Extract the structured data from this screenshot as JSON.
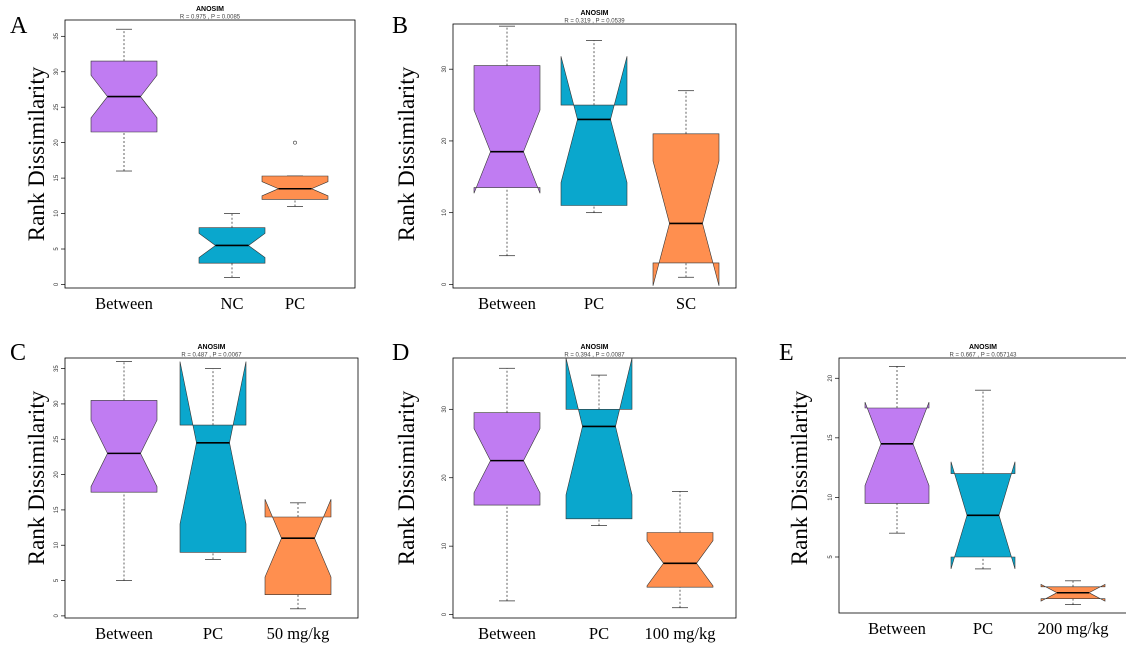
{
  "colors": {
    "Between": "#c07cf2",
    "PC": "#0aa7cd",
    "other": "#ff8f4f"
  },
  "chart_data": [
    {
      "panel": "A",
      "type": "box",
      "title": "ANOSIM",
      "subtitle": "R = 0.975 , P = 0.0085",
      "ylabel": "Rank Dissimilarity",
      "yticks": [
        0,
        5,
        10,
        15,
        20,
        25,
        30,
        35
      ],
      "ylim": [
        -0.5,
        37.3
      ],
      "categories": [
        "Between",
        "NC",
        "PC"
      ],
      "boxes": [
        {
          "min": 16,
          "q1": 21.5,
          "median": 26.5,
          "q3": 31.5,
          "max": 36,
          "notch_lo": 23.5,
          "notch_hi": 29.5,
          "outliers": []
        },
        {
          "min": 1,
          "q1": 3,
          "median": 5.5,
          "q3": 8,
          "max": 10,
          "notch_lo": 3.8,
          "notch_hi": 7.2,
          "outliers": []
        },
        {
          "min": 11,
          "q1": 12,
          "median": 13.5,
          "q3": 15.3,
          "max": 15.3,
          "notch_lo": 12.5,
          "notch_hi": 14.5,
          "outliers": [
            20
          ]
        }
      ]
    },
    {
      "panel": "B",
      "type": "box",
      "title": "ANOSIM",
      "subtitle": "R = 0.319 , P = 0.0539",
      "ylabel": "Rank Dissimilarity",
      "yticks": [
        0,
        10,
        20,
        30
      ],
      "ylim": [
        -0.5,
        36.3
      ],
      "categories": [
        "Between",
        "PC",
        "SC"
      ],
      "boxes": [
        {
          "min": 4,
          "q1": 13.5,
          "median": 18.5,
          "q3": 30.5,
          "max": 36,
          "notch_lo": 12.7,
          "notch_hi": 24.3,
          "outliers": []
        },
        {
          "min": 10,
          "q1": 11,
          "median": 23,
          "q3": 25,
          "max": 34,
          "notch_lo": 14.2,
          "notch_hi": 31.8,
          "outliers": []
        },
        {
          "min": 1,
          "q1": 3,
          "median": 8.5,
          "q3": 21,
          "max": 27,
          "notch_lo": -0.2,
          "notch_hi": 17.2,
          "outliers": []
        }
      ]
    },
    {
      "panel": "C",
      "type": "box",
      "title": "ANOSIM",
      "subtitle": "R = 0.487 , P = 0.0067",
      "ylabel": "Rank Dissimilarity",
      "yticks": [
        0,
        5,
        10,
        15,
        20,
        25,
        30,
        35
      ],
      "ylim": [
        -0.3,
        36.5
      ],
      "categories": [
        "Between",
        "PC",
        "50 mg/kg"
      ],
      "boxes": [
        {
          "min": 5,
          "q1": 17.5,
          "median": 23,
          "q3": 30.5,
          "max": 36,
          "notch_lo": 18.3,
          "notch_hi": 27.7,
          "outliers": []
        },
        {
          "min": 8,
          "q1": 9,
          "median": 24.5,
          "q3": 27,
          "max": 35,
          "notch_lo": 13,
          "notch_hi": 36,
          "outliers": []
        },
        {
          "min": 1,
          "q1": 3,
          "median": 11,
          "q3": 14,
          "max": 16,
          "notch_lo": 5.5,
          "notch_hi": 16.5,
          "outliers": []
        }
      ]
    },
    {
      "panel": "D",
      "type": "box",
      "title": "ANOSIM",
      "subtitle": "R = 0.394 , P = 0.0087",
      "ylabel": "Rank Dissimilarity",
      "yticks": [
        0,
        10,
        20,
        30
      ],
      "ylim": [
        -0.5,
        37.5
      ],
      "categories": [
        "Between",
        "PC",
        "100 mg/kg"
      ],
      "boxes": [
        {
          "min": 2,
          "q1": 16,
          "median": 22.5,
          "q3": 29.5,
          "max": 36,
          "notch_lo": 17.8,
          "notch_hi": 27.2,
          "outliers": []
        },
        {
          "min": 13,
          "q1": 14,
          "median": 27.5,
          "q3": 30,
          "max": 35,
          "notch_lo": 17.5,
          "notch_hi": 37.5,
          "outliers": []
        },
        {
          "min": 1,
          "q1": 4,
          "median": 7.5,
          "q3": 12,
          "max": 18,
          "notch_lo": 4.2,
          "notch_hi": 10.8,
          "outliers": []
        }
      ]
    },
    {
      "panel": "E",
      "type": "box",
      "title": "ANOSIM",
      "subtitle": "R = 0.667 , P = 0.057143",
      "ylabel": "Rank Dissimilarity",
      "yticks": [
        5,
        10,
        15,
        20
      ],
      "ylim": [
        0.3,
        21.7
      ],
      "categories": [
        "Between",
        "PC",
        "200 mg/kg"
      ],
      "boxes": [
        {
          "min": 7,
          "q1": 9.5,
          "median": 14.5,
          "q3": 17.5,
          "max": 21,
          "notch_lo": 11,
          "notch_hi": 18,
          "outliers": []
        },
        {
          "min": 4,
          "q1": 5,
          "median": 8.5,
          "q3": 12,
          "max": 19,
          "notch_lo": 4,
          "notch_hi": 13,
          "outliers": []
        },
        {
          "min": 1,
          "q1": 1.5,
          "median": 2,
          "q3": 2.5,
          "max": 3,
          "notch_lo": 1.3,
          "notch_hi": 2.7,
          "outliers": []
        }
      ]
    }
  ]
}
